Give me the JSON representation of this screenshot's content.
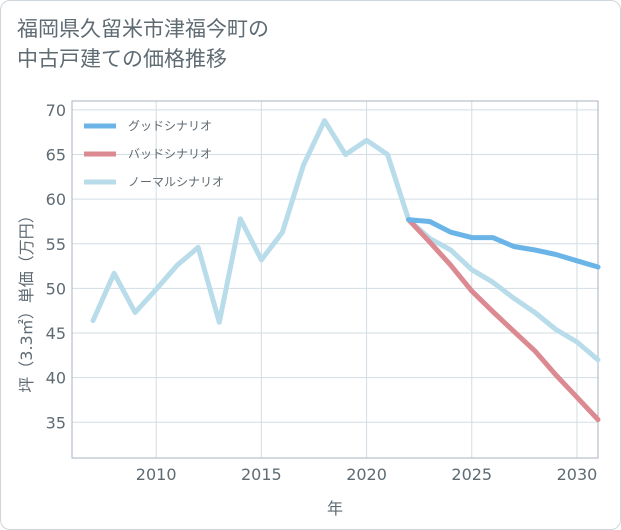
{
  "chart_data": {
    "type": "line",
    "title": [
      "福岡県久留米市津福今町の",
      "中古戸建ての価格推移"
    ],
    "xlabel": "年",
    "ylabel": "坪（3.3㎡）単価（万円）",
    "xlim": [
      2006,
      2031
    ],
    "ylim": [
      31,
      71
    ],
    "x_ticks": [
      2010,
      2015,
      2020,
      2025,
      2030
    ],
    "y_ticks": [
      35,
      40,
      45,
      50,
      55,
      60,
      65,
      70
    ],
    "grid": true,
    "legend_position": "top-left",
    "series": [
      {
        "name": "グッドシナリオ",
        "color": "#6ab4e8",
        "x": [
          2022,
          2023,
          2024,
          2025,
          2026,
          2027,
          2028,
          2029,
          2030,
          2031
        ],
        "values": [
          57.7,
          57.5,
          56.3,
          55.7,
          55.7,
          54.7,
          54.3,
          53.8,
          53.1,
          52.4
        ]
      },
      {
        "name": "バッドシナリオ",
        "color": "#dc8a92",
        "x": [
          2022,
          2023,
          2024,
          2025,
          2026,
          2027,
          2028,
          2029,
          2030,
          2031
        ],
        "values": [
          57.7,
          55.2,
          52.6,
          49.7,
          47.4,
          45.2,
          43.0,
          40.3,
          37.8,
          35.3
        ]
      },
      {
        "name": "ノーマルシナリオ",
        "color": "#b9dcea",
        "x": [
          2007,
          2008,
          2009,
          2010,
          2011,
          2012,
          2013,
          2014,
          2015,
          2016,
          2017,
          2018,
          2019,
          2020,
          2021,
          2022,
          2023,
          2024,
          2025,
          2026,
          2027,
          2028,
          2029,
          2030,
          2031
        ],
        "values": [
          46.4,
          51.7,
          47.3,
          49.9,
          52.6,
          54.6,
          46.2,
          57.8,
          53.2,
          56.3,
          63.8,
          68.8,
          65.0,
          66.6,
          65.0,
          57.7,
          55.6,
          54.3,
          52.1,
          50.7,
          48.9,
          47.3,
          45.4,
          44.0,
          42.0
        ]
      }
    ]
  }
}
